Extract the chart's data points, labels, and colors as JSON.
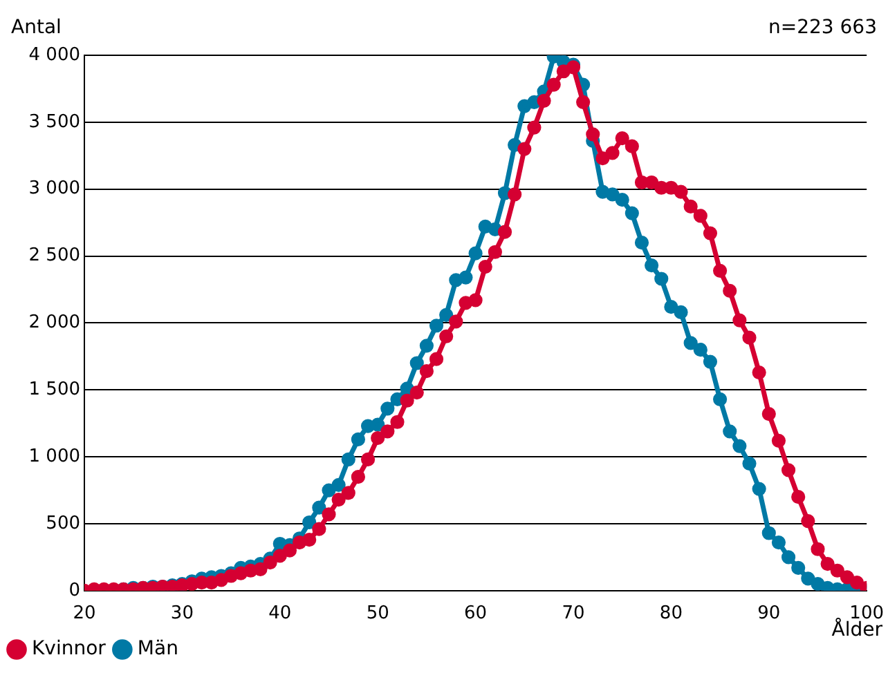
{
  "chart_data": {
    "type": "line",
    "ylabel": "Antal",
    "xlabel": "Ålder",
    "annotations": [
      "n=223 663"
    ],
    "x": [
      20,
      21,
      22,
      23,
      24,
      25,
      26,
      27,
      28,
      29,
      30,
      31,
      32,
      33,
      34,
      35,
      36,
      37,
      38,
      39,
      40,
      41,
      42,
      43,
      44,
      45,
      46,
      47,
      48,
      49,
      50,
      51,
      52,
      53,
      54,
      55,
      56,
      57,
      58,
      59,
      60,
      61,
      62,
      63,
      64,
      65,
      66,
      67,
      68,
      69,
      70,
      71,
      72,
      73,
      74,
      75,
      76,
      77,
      78,
      79,
      80,
      81,
      82,
      83,
      84,
      85,
      86,
      87,
      88,
      89,
      90,
      91,
      92,
      93,
      94,
      95,
      96,
      97,
      98,
      99,
      100
    ],
    "series": [
      {
        "name": "Kvinnor",
        "color": "#d50032",
        "values": [
          0,
          10,
          10,
          10,
          10,
          10,
          20,
          20,
          30,
          30,
          40,
          50,
          60,
          60,
          80,
          110,
          130,
          150,
          160,
          210,
          260,
          300,
          360,
          380,
          460,
          570,
          680,
          730,
          850,
          980,
          1140,
          1190,
          1260,
          1420,
          1480,
          1640,
          1730,
          1900,
          2010,
          2150,
          2170,
          2420,
          2530,
          2680,
          2960,
          3300,
          3460,
          3660,
          3780,
          3880,
          3910,
          3650,
          3410,
          3230,
          3270,
          3380,
          3320,
          3050,
          3050,
          3010,
          3010,
          2980,
          2870,
          2800,
          2670,
          2390,
          2240,
          2020,
          1890,
          1630,
          1320,
          1120,
          900,
          700,
          520,
          310,
          200,
          150,
          100,
          60,
          20
        ]
      },
      {
        "name": "Män",
        "color": "#0079a5",
        "values": [
          null,
          null,
          null,
          null,
          10,
          20,
          20,
          30,
          30,
          40,
          50,
          70,
          90,
          100,
          110,
          130,
          170,
          180,
          200,
          240,
          350,
          340,
          390,
          510,
          620,
          750,
          790,
          980,
          1130,
          1230,
          1240,
          1360,
          1430,
          1510,
          1700,
          1830,
          1980,
          2060,
          2320,
          2340,
          2520,
          2720,
          2700,
          2970,
          3330,
          3620,
          3650,
          3730,
          3990,
          3950,
          3930,
          3780,
          3360,
          2980,
          2960,
          2920,
          2820,
          2600,
          2430,
          2330,
          2120,
          2080,
          1850,
          1800,
          1710,
          1430,
          1190,
          1080,
          950,
          760,
          430,
          360,
          250,
          170,
          90,
          50,
          20,
          10,
          10,
          10,
          0
        ]
      }
    ],
    "xlim": [
      20,
      100
    ],
    "xticks": [
      20,
      30,
      40,
      50,
      60,
      70,
      80,
      90,
      100
    ],
    "ylim": [
      0,
      4000
    ],
    "yticks": [
      0,
      {
        "value": 500,
        "label": "500"
      },
      {
        "value": 1000,
        "label": "1 000"
      },
      {
        "value": 1500,
        "label": "1 500"
      },
      {
        "value": 2000,
        "label": "2 000"
      },
      {
        "value": 2500,
        "label": "2 500"
      },
      {
        "value": 3000,
        "label": "3 000"
      },
      {
        "value": 3500,
        "label": "3 500"
      },
      {
        "value": 4000,
        "label": "4 000"
      }
    ],
    "grid": "y",
    "legend": "bottom left",
    "marker": "circle",
    "line_style": "solid"
  }
}
